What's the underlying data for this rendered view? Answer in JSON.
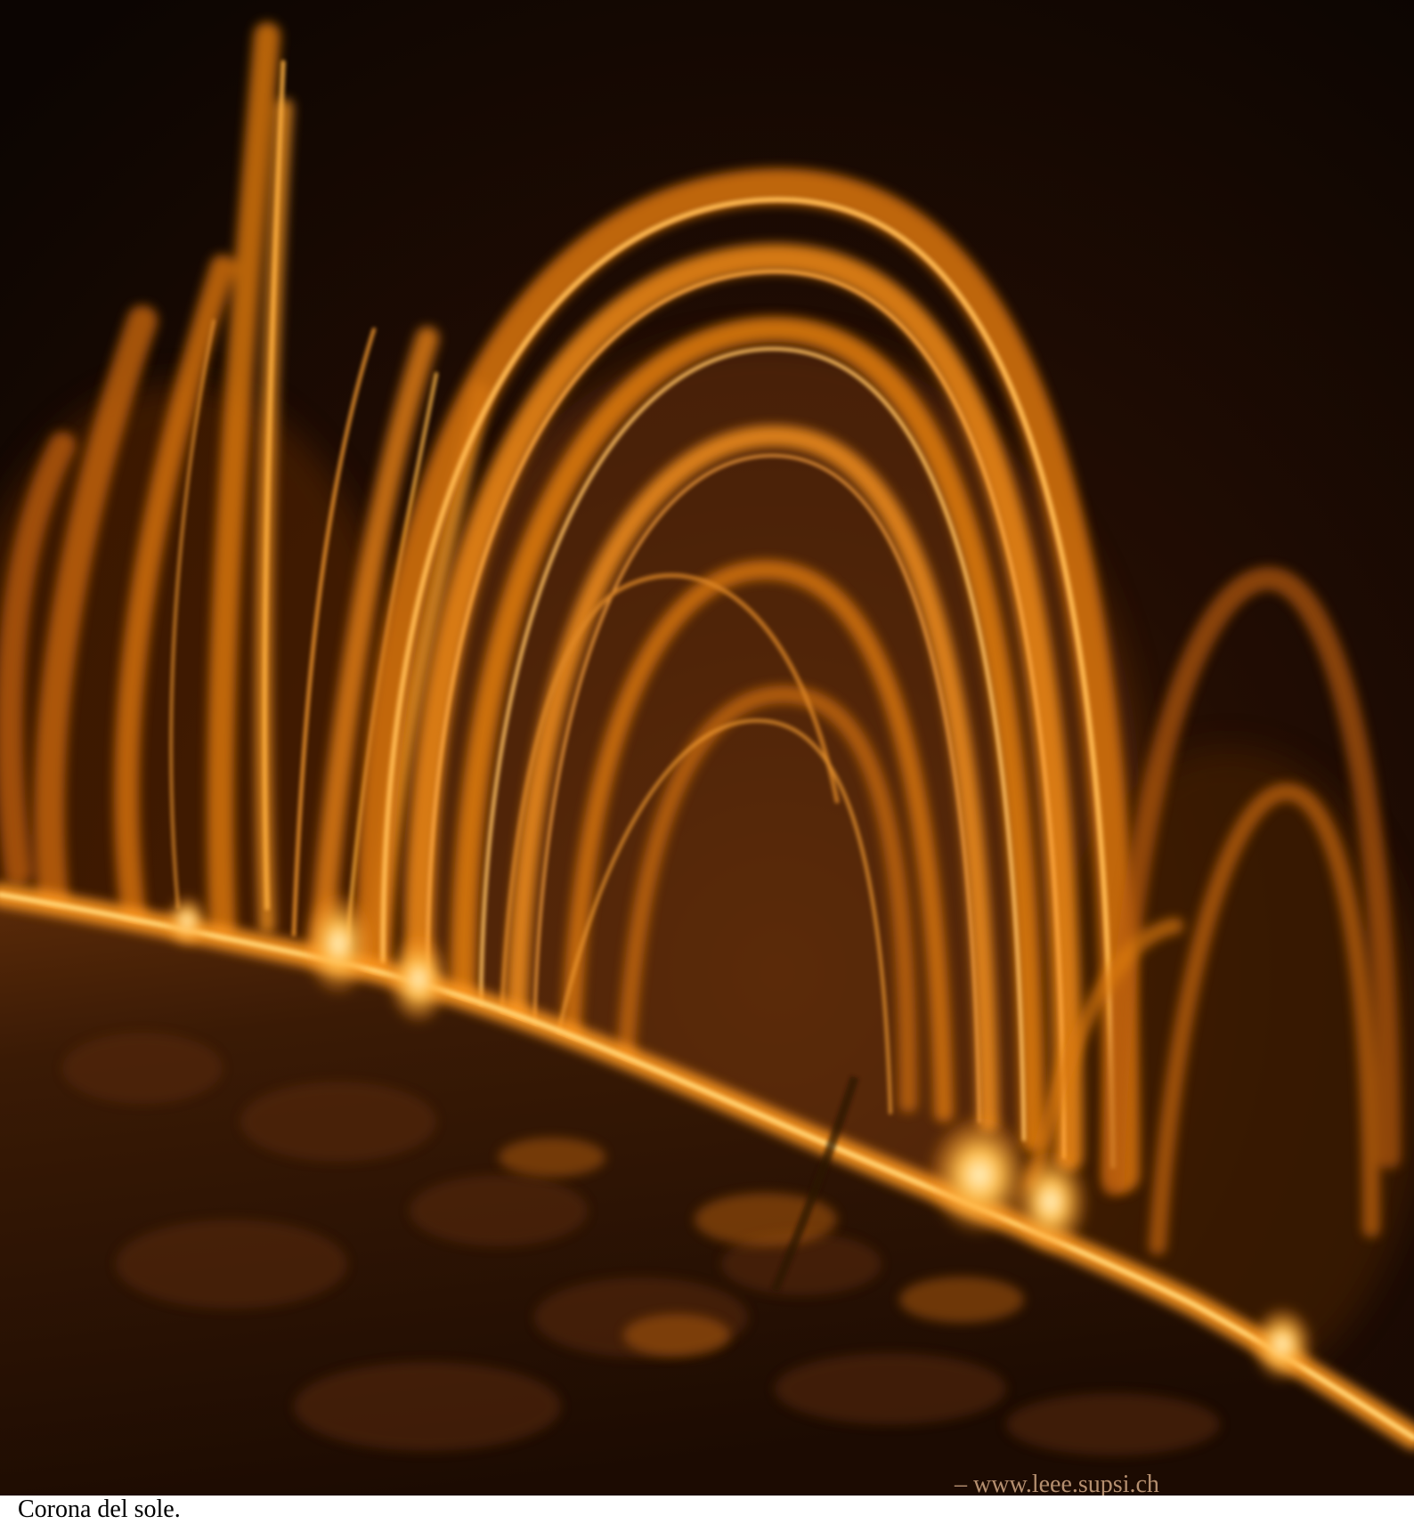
{
  "image": {
    "caption": "Corona del sole.",
    "watermark": "– www.leee.supsi.ch",
    "colors": {
      "background": "#0c0502",
      "loop_bright": "#ffb040",
      "loop_mid": "#e8820f",
      "surface_dark": "#2a1204",
      "hot_core": "#fff2c0"
    }
  }
}
